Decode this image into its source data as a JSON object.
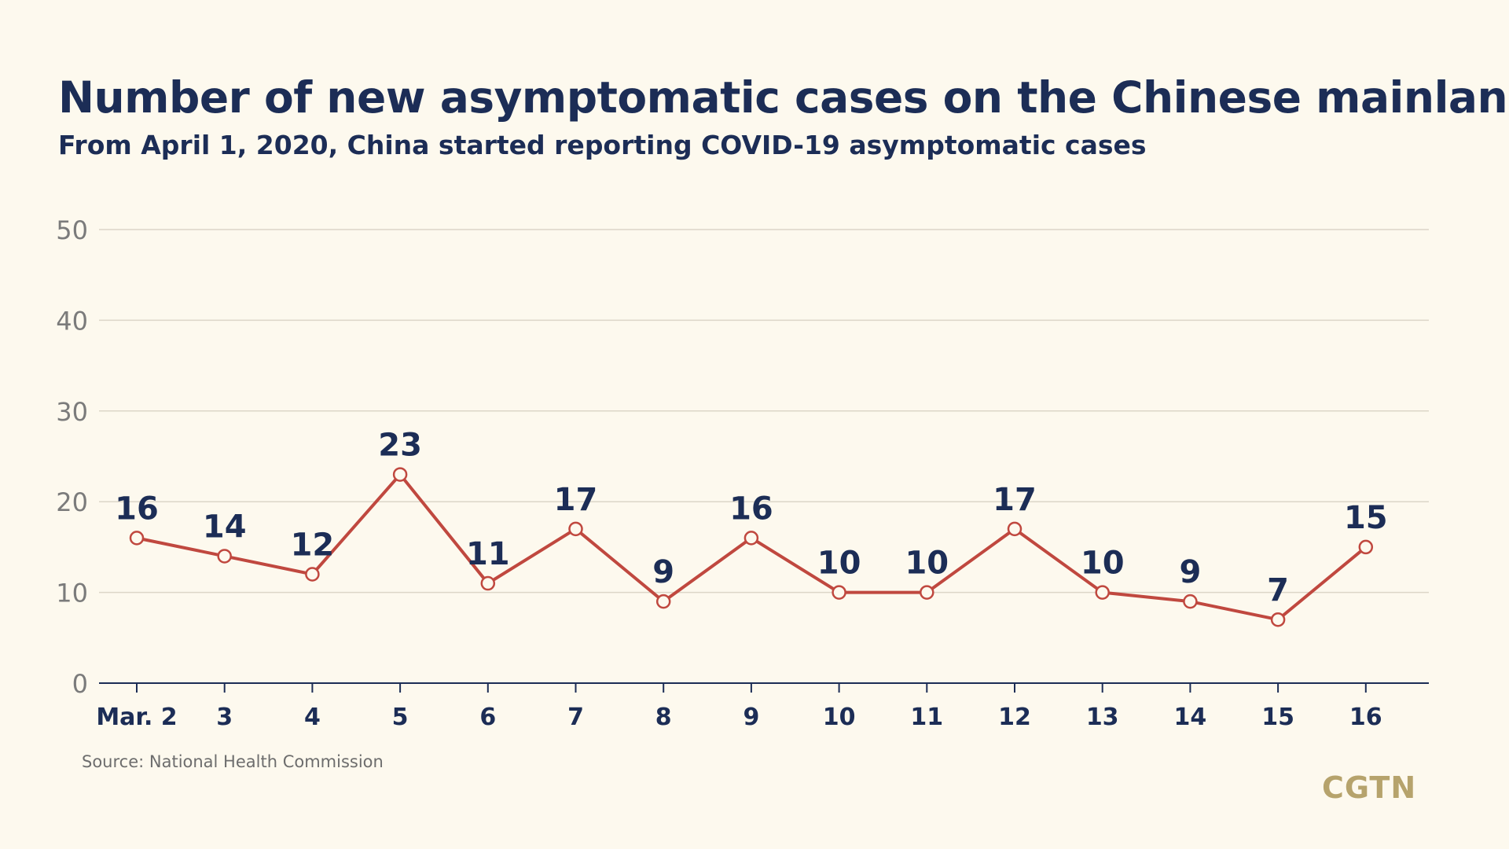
{
  "header": {
    "title": "Number of new asymptomatic cases on the Chinese mainland",
    "subtitle": "From April 1, 2020, China started reporting COVID-19 asymptomatic cases"
  },
  "footer": {
    "source": "Source: National Health Commission",
    "logo": "CGTN"
  },
  "colors": {
    "line": "#c0483f",
    "marker_fill": "#fdf9ee",
    "title": "#1c2d56",
    "grid": "#dcd6c8",
    "axis": "#1c2d56",
    "y_tick": "#7b7b7b",
    "logo": "#b6a36c"
  },
  "chart_data": {
    "type": "line",
    "categories": [
      "Mar. 2",
      "3",
      "4",
      "5",
      "6",
      "7",
      "8",
      "9",
      "10",
      "11",
      "12",
      "13",
      "14",
      "15",
      "16"
    ],
    "series": [
      {
        "values": [
          16,
          14,
          12,
          23,
          11,
          17,
          9,
          16,
          10,
          10,
          17,
          10,
          9,
          7,
          15
        ]
      }
    ],
    "data_labels": [
      "16",
      "14",
      "12",
      "23",
      "11",
      "17",
      "9",
      "16",
      "10",
      "10",
      "17",
      "10",
      "9",
      "7",
      "15"
    ],
    "ylim": [
      0,
      50
    ],
    "yticks": [
      0,
      10,
      20,
      30,
      40,
      50
    ],
    "ytick_labels": [
      "0",
      "10",
      "20",
      "30",
      "40",
      "50"
    ],
    "grid": true,
    "legend": "none"
  }
}
